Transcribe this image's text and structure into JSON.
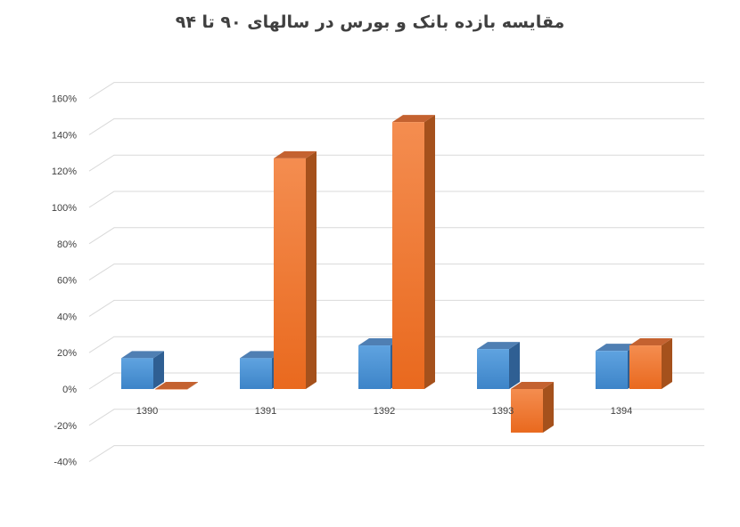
{
  "chart_data": {
    "type": "bar",
    "title": "مقایسه بازده بانک و بورس در سالهای ۹۰ تا ۹۴",
    "categories": [
      "1390",
      "1391",
      "1392",
      "1393",
      "1394"
    ],
    "series": [
      {
        "values": [
          0.17,
          0.17,
          0.24,
          0.22,
          0.21
        ]
      },
      {
        "values": [
          0.0,
          1.27,
          1.47,
          -0.24,
          0.24
        ]
      }
    ],
    "ylim": [
      -0.4,
      1.6
    ],
    "yticks": [
      -0.4,
      -0.2,
      0,
      0.2,
      0.4,
      0.6,
      0.8,
      1.0,
      1.2,
      1.4,
      1.6
    ],
    "ytick_labels": [
      "-40%",
      "-20%",
      "0%",
      "20%",
      "40%",
      "60%",
      "80%",
      "100%",
      "120%",
      "140%",
      "160%"
    ],
    "grid": true,
    "colors": {
      "series_1": "#5b9bd5",
      "series_2": "#ed7d31",
      "grid": "#d9d9d9",
      "tick_text": "#404040"
    }
  }
}
